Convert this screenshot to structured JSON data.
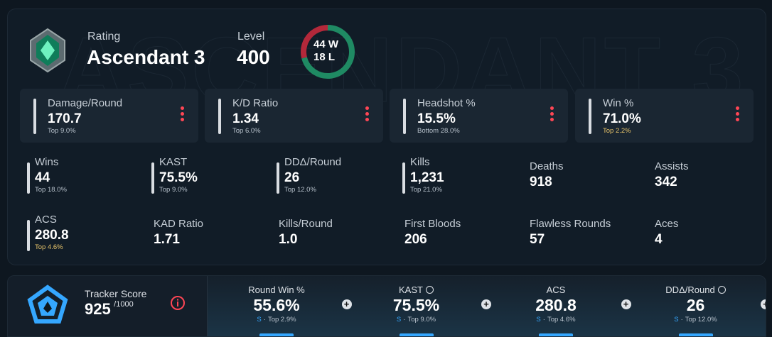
{
  "rating": {
    "label": "Rating",
    "value": "Ascendant 3"
  },
  "level": {
    "label": "Level",
    "value": "400"
  },
  "record": {
    "wins": 44,
    "wins_unit": "W",
    "losses": 18,
    "losses_unit": "L",
    "wins_color": "#1f8a63",
    "losses_color": "#b3283a"
  },
  "highlight_stats": [
    {
      "label": "Damage/Round",
      "value": "170.7",
      "rank": "Top 9.0%",
      "rank_color": "#b8c2cc"
    },
    {
      "label": "K/D Ratio",
      "value": "1.34",
      "rank": "Top 6.0%",
      "rank_color": "#b8c2cc"
    },
    {
      "label": "Headshot %",
      "value": "15.5%",
      "rank": "Bottom 28.0%",
      "rank_color": "#b8c2cc"
    },
    {
      "label": "Win %",
      "value": "71.0%",
      "rank": "Top 2.2%",
      "rank_color": "#e6c36a"
    }
  ],
  "stats": [
    {
      "label": "Wins",
      "value": "44",
      "rank": "Top 18.0%",
      "rank_color": "#b8c2cc"
    },
    {
      "label": "KAST",
      "value": "75.5%",
      "rank": "Top 9.0%",
      "rank_color": "#b8c2cc"
    },
    {
      "label": "DDΔ/Round",
      "value": "26",
      "rank": "Top 12.0%",
      "rank_color": "#b8c2cc"
    },
    {
      "label": "Kills",
      "value": "1,231",
      "rank": "Top 21.0%",
      "rank_color": "#b8c2cc"
    },
    {
      "label": "Deaths",
      "value": "918"
    },
    {
      "label": "Assists",
      "value": "342"
    },
    {
      "label": "ACS",
      "value": "280.8",
      "rank": "Top 4.6%",
      "rank_color": "#e6c36a"
    },
    {
      "label": "KAD Ratio",
      "value": "1.71"
    },
    {
      "label": "Kills/Round",
      "value": "1.0"
    },
    {
      "label": "First Bloods",
      "value": "206"
    },
    {
      "label": "Flawless Rounds",
      "value": "57"
    },
    {
      "label": "Aces",
      "value": "4"
    }
  ],
  "tracker": {
    "label": "Tracker Score",
    "score": "925",
    "max": "/1000"
  },
  "summary": [
    {
      "label": "Round Win %",
      "value": "55.6%",
      "tier": "S",
      "rank": "Top 2.9%",
      "info": false
    },
    {
      "label": "KAST",
      "value": "75.5%",
      "tier": "S",
      "rank": "Top 9.0%",
      "info": true
    },
    {
      "label": "ACS",
      "value": "280.8",
      "tier": "S",
      "rank": "Top 4.6%",
      "info": false
    },
    {
      "label": "DDΔ/Round",
      "value": "26",
      "tier": "S",
      "rank": "Top 12.0%",
      "info": true
    }
  ]
}
